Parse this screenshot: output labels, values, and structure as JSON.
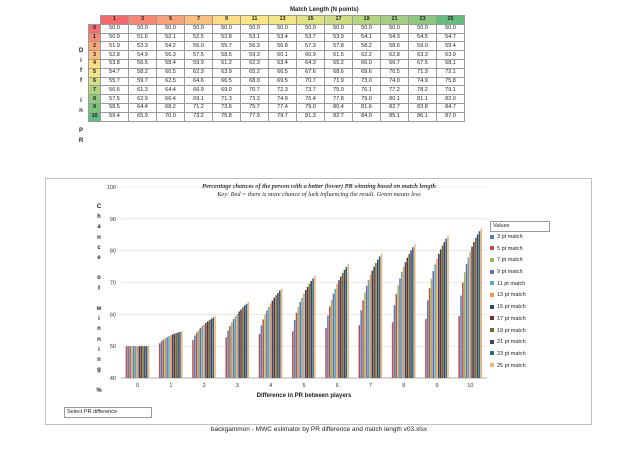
{
  "table": {
    "title": "Match Length (N points)",
    "side_label": "D\ni\nf\nf\n\ni\nn\n\nP\nR",
    "lengths": [
      "1",
      "3",
      "5",
      "7",
      "9",
      "11",
      "13",
      "15",
      "17",
      "19",
      "21",
      "23",
      "25"
    ],
    "row_labels": [
      "0",
      "1",
      "2",
      "3",
      "4",
      "5",
      "6",
      "7",
      "8",
      "9",
      "10"
    ],
    "rows": [
      [
        "50.0",
        "50.0",
        "50.0",
        "50.0",
        "50.0",
        "50.0",
        "50.0",
        "50.0",
        "50.0",
        "50.0",
        "50.0",
        "50.0",
        "50.0"
      ],
      [
        "50.9",
        "51.6",
        "52.1",
        "52.5",
        "52.8",
        "53.1",
        "53.4",
        "53.7",
        "53.9",
        "54.1",
        "54.3",
        "54.5",
        "54.7"
      ],
      [
        "51.9",
        "53.3",
        "54.2",
        "55.0",
        "55.7",
        "56.3",
        "56.8",
        "57.3",
        "57.8",
        "58.2",
        "58.6",
        "59.0",
        "59.4"
      ],
      [
        "52.8",
        "54.9",
        "56.3",
        "57.5",
        "58.5",
        "59.3",
        "60.1",
        "60.9",
        "61.5",
        "62.2",
        "62.8",
        "63.3",
        "63.9"
      ],
      [
        "53.8",
        "56.5",
        "58.4",
        "59.9",
        "61.2",
        "62.3",
        "63.4",
        "64.3",
        "65.2",
        "66.0",
        "66.7",
        "67.5",
        "68.1"
      ],
      [
        "54.7",
        "58.2",
        "60.5",
        "62.3",
        "63.9",
        "65.2",
        "66.5",
        "67.6",
        "68.6",
        "69.6",
        "70.5",
        "71.3",
        "72.1"
      ],
      [
        "55.7",
        "59.7",
        "62.5",
        "64.6",
        "66.5",
        "68.0",
        "69.5",
        "70.7",
        "71.9",
        "73.0",
        "74.0",
        "74.9",
        "75.8"
      ],
      [
        "56.6",
        "61.3",
        "64.4",
        "66.9",
        "69.0",
        "70.7",
        "72.3",
        "73.7",
        "75.0",
        "76.1",
        "77.2",
        "78.2",
        "79.1"
      ],
      [
        "57.5",
        "62.9",
        "66.4",
        "69.1",
        "71.3",
        "73.3",
        "74.9",
        "76.4",
        "77.8",
        "79.0",
        "80.1",
        "81.1",
        "82.0"
      ],
      [
        "58.5",
        "64.4",
        "68.2",
        "71.2",
        "73.6",
        "75.7",
        "77.4",
        "79.0",
        "80.4",
        "81.6",
        "82.7",
        "83.8",
        "84.7"
      ],
      [
        "59.4",
        "65.9",
        "70.0",
        "73.2",
        "75.8",
        "77.9",
        "79.7",
        "81.3",
        "82.7",
        "84.0",
        "85.1",
        "86.1",
        "87.0"
      ]
    ],
    "header_colors": [
      "#f8696b",
      "#f98670",
      "#fba076",
      "#fcbf7b",
      "#fedc81",
      "#fee783",
      "#f4e783",
      "#e0e282",
      "#cbdc81",
      "#b5d57f",
      "#a2d07f",
      "#8cc97e",
      "#63be7b"
    ]
  },
  "caption": "Percentage chances of the person with a better (lower) PR winning based on match length",
  "key": "Key: Red = there is more chance of luck influencing the result. Green means less",
  "ylabel_vertical": "C\nh\na\nn\nc\ne\n\no\nf\n\nw\ni\nn\nn\ni\nn\ng\n\n%",
  "select_box": "Select PR difference",
  "footer": "backgammon - MWC estimator by PR difference and match length v03.xlsx",
  "legend": {
    "title": "Values",
    "items": [
      "3 pt match",
      "5 pt match",
      "7 pt match",
      "9 pt match",
      "11 pt match",
      "13 pt match",
      "15 pt match",
      "17 pt match",
      "19 pt match",
      "21 pt match",
      "23 pt match",
      "25 pt match"
    ]
  },
  "chart_data": {
    "type": "bar",
    "title": "",
    "xlabel": "Difference in PR between players",
    "ylabel": "",
    "ylim": [
      40,
      100
    ],
    "yticks": [
      40,
      50,
      60,
      70,
      80,
      90,
      100
    ],
    "categories": [
      "0",
      "1",
      "2",
      "3",
      "4",
      "5",
      "6",
      "7",
      "8",
      "9",
      "10"
    ],
    "grid": true,
    "legend_position": "right",
    "series": [
      {
        "name": "1 pt match",
        "color": "#c0504d",
        "values": [
          50.0,
          50.9,
          51.9,
          52.8,
          53.8,
          54.7,
          55.7,
          56.6,
          57.5,
          58.5,
          59.4
        ]
      },
      {
        "name": "3 pt match",
        "color": "#4f81bd",
        "values": [
          50.0,
          51.6,
          53.3,
          54.9,
          56.5,
          58.2,
          59.7,
          61.3,
          62.9,
          64.4,
          65.9
        ]
      },
      {
        "name": "5 pt match",
        "color": "#c0504d",
        "values": [
          50.0,
          52.1,
          54.2,
          56.3,
          58.4,
          60.5,
          62.5,
          64.4,
          66.4,
          68.2,
          70.0
        ]
      },
      {
        "name": "7 pt match",
        "color": "#9bbb59",
        "values": [
          50.0,
          52.5,
          55.0,
          57.5,
          59.9,
          62.3,
          64.6,
          66.9,
          69.1,
          71.2,
          73.2
        ]
      },
      {
        "name": "9 pt match",
        "color": "#8064a2",
        "values": [
          50.0,
          52.8,
          55.7,
          58.5,
          61.2,
          63.9,
          66.5,
          69.0,
          71.3,
          73.6,
          75.8
        ]
      },
      {
        "name": "11 pt match",
        "color": "#4bacc6",
        "values": [
          50.0,
          53.1,
          56.3,
          59.3,
          62.3,
          65.2,
          68.0,
          70.7,
          73.3,
          75.7,
          77.9
        ]
      },
      {
        "name": "13 pt match",
        "color": "#f79646",
        "values": [
          50.0,
          53.4,
          56.8,
          60.1,
          63.4,
          66.5,
          69.5,
          72.3,
          74.9,
          77.4,
          79.7
        ]
      },
      {
        "name": "15 pt match",
        "color": "#2c4d75",
        "values": [
          50.0,
          53.7,
          57.3,
          60.9,
          64.3,
          67.6,
          70.7,
          73.7,
          76.4,
          79.0,
          81.3
        ]
      },
      {
        "name": "17 pt match",
        "color": "#772c2a",
        "values": [
          50.0,
          53.9,
          57.8,
          61.5,
          65.2,
          68.6,
          71.9,
          75.0,
          77.8,
          80.4,
          82.7
        ]
      },
      {
        "name": "19 pt match",
        "color": "#5f7530",
        "values": [
          50.0,
          54.1,
          58.2,
          62.2,
          66.0,
          69.6,
          73.0,
          76.1,
          79.0,
          81.6,
          84.0
        ]
      },
      {
        "name": "21 pt match",
        "color": "#4d3b62",
        "values": [
          50.0,
          54.3,
          58.6,
          62.8,
          66.7,
          70.5,
          74.0,
          77.2,
          80.1,
          82.7,
          85.1
        ]
      },
      {
        "name": "23 pt match",
        "color": "#276a7c",
        "values": [
          50.0,
          54.5,
          59.0,
          63.3,
          67.5,
          71.3,
          74.9,
          78.2,
          81.1,
          83.8,
          86.1
        ]
      },
      {
        "name": "25 pt match",
        "color": "#f9b074",
        "values": [
          50.0,
          54.7,
          59.4,
          63.9,
          68.1,
          72.1,
          75.8,
          79.1,
          82.0,
          84.7,
          87.0
        ]
      }
    ]
  }
}
